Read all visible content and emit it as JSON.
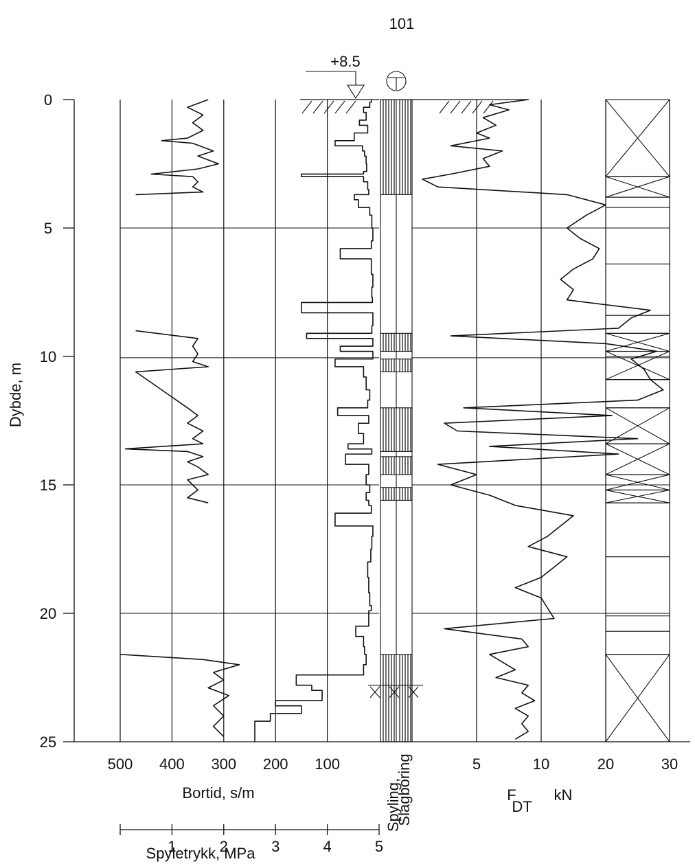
{
  "chart_data": {
    "type": "line",
    "title": "101",
    "ylabel": "Dybde, m",
    "depth_ticks": [
      "0",
      "5",
      "10",
      "15",
      "20",
      "25"
    ],
    "ylim": [
      0,
      25
    ],
    "water_level_label": "+8.5",
    "bortid": {
      "xlabel": "Bortid, s/m",
      "ticks": [
        "500",
        "400",
        "300",
        "200",
        "100"
      ],
      "xlim": [
        0,
        500
      ],
      "depth": [
        0.0,
        0.1,
        0.3,
        0.5,
        0.8,
        1.0,
        1.3,
        1.6,
        1.8,
        2.0,
        2.2,
        2.5,
        2.8,
        2.9,
        3.0,
        3.2,
        3.5,
        3.7,
        3.9,
        4.2,
        4.5,
        5.0,
        5.5,
        5.8,
        6.2,
        6.8,
        7.3,
        7.7,
        7.9,
        8.3,
        8.8,
        9.1,
        9.3,
        9.6,
        9.8,
        10.1,
        10.4,
        10.8,
        11.3,
        11.7,
        12.0,
        12.3,
        12.6,
        13.0,
        13.4,
        13.6,
        13.8,
        14.2,
        14.6,
        15.0,
        15.3,
        15.6,
        15.8,
        16.1,
        16.6,
        17.0,
        17.5,
        18.0,
        18.6,
        19.2,
        19.7,
        19.9,
        20.5,
        20.9,
        21.3,
        21.6,
        22.0,
        22.4,
        22.8,
        23.0,
        23.4,
        23.6,
        23.9,
        24.2,
        24.6,
        24.9
      ],
      "values": [
        15,
        18,
        30,
        25,
        38,
        22,
        48,
        85,
        32,
        28,
        25,
        24,
        30,
        150,
        30,
        22,
        20,
        48,
        40,
        18,
        14,
        12,
        15,
        75,
        15,
        12,
        14,
        13,
        150,
        12,
        14,
        140,
        12,
        75,
        12,
        85,
        30,
        25,
        18,
        22,
        80,
        20,
        40,
        30,
        60,
        14,
        65,
        20,
        25,
        18,
        25,
        20,
        15,
        85,
        12,
        14,
        16,
        22,
        20,
        18,
        15,
        20,
        45,
        30,
        28,
        25,
        30,
        160,
        130,
        110,
        200,
        150,
        210,
        240,
        240,
        240
      ],
      "color": "#111111"
    },
    "spyletrykk": {
      "xlabel": "Spyletrykk, MPa",
      "ticks": [
        "1",
        "2",
        "3",
        "4",
        "5"
      ],
      "xlim": [
        0,
        5
      ],
      "depth": [
        0.0,
        0.3,
        0.6,
        0.9,
        1.2,
        1.5,
        1.6,
        1.7,
        2.0,
        2.2,
        2.5,
        2.7,
        2.9,
        3.0,
        3.2,
        3.4,
        3.6,
        3.7,
        9.0,
        9.3,
        9.6,
        9.9,
        10.2,
        10.4,
        10.6,
        12.0,
        12.3,
        12.6,
        12.9,
        13.2,
        13.4,
        13.6,
        13.7,
        13.9,
        14.1,
        14.3,
        14.6,
        14.8,
        15.0,
        15.2,
        15.5,
        15.7,
        21.6,
        21.8,
        22.0,
        22.3,
        22.6,
        22.9,
        23.2,
        23.6,
        24.0,
        24.4,
        24.8
      ],
      "values": [
        1.7,
        1.3,
        1.6,
        1.4,
        1.6,
        1.3,
        0.8,
        1.4,
        1.8,
        1.5,
        1.9,
        1.5,
        0.6,
        1.4,
        1.5,
        1.4,
        1.6,
        0.3,
        0.3,
        1.5,
        1.4,
        1.5,
        1.4,
        1.7,
        0.3,
        1.3,
        1.5,
        1.3,
        1.6,
        1.4,
        1.6,
        0.1,
        1.3,
        1.6,
        1.3,
        1.5,
        1.7,
        1.3,
        1.4,
        1.5,
        1.3,
        1.7,
        0.0,
        1.6,
        2.3,
        1.8,
        2.0,
        1.7,
        2.1,
        1.8,
        2.0,
        1.8,
        2.0
      ],
      "color": "#111111"
    },
    "method_column": {
      "label_top": "Spyling,",
      "label_bottom": "Slagboring",
      "hatched_intervals": [
        [
          0,
          3.7
        ],
        [
          9.1,
          9.8
        ],
        [
          10.1,
          10.6
        ],
        [
          12.0,
          13.7
        ],
        [
          13.9,
          14.6
        ],
        [
          15.1,
          15.6
        ],
        [
          21.6,
          25.0
        ]
      ]
    },
    "fdt": {
      "xlabel": "F",
      "xlabel_sub": "DT",
      "unit": "kN",
      "ticks": [
        "5",
        "10",
        "20",
        "30"
      ],
      "xlim": [
        0,
        30
      ],
      "depth": [
        0.0,
        0.2,
        0.4,
        0.7,
        1.0,
        1.3,
        1.5,
        1.8,
        2.0,
        2.3,
        2.6,
        2.9,
        3.1,
        3.4,
        3.7,
        4.1,
        4.5,
        5.0,
        5.4,
        5.8,
        6.2,
        6.6,
        7.0,
        7.4,
        7.8,
        8.2,
        8.5,
        8.9,
        9.2,
        9.5,
        9.8,
        10.1,
        10.5,
        10.9,
        11.3,
        11.7,
        12.0,
        12.3,
        12.6,
        12.9,
        13.2,
        13.5,
        13.8,
        14.2,
        14.6,
        15.0,
        15.4,
        15.8,
        16.2,
        16.6,
        17.0,
        17.4,
        17.8,
        18.2,
        18.6,
        19.0,
        19.4,
        19.8,
        20.2,
        20.6,
        21.0,
        21.3,
        21.6,
        21.9,
        22.2,
        22.5,
        22.8,
        23.1,
        23.4,
        23.7,
        24.0,
        24.3,
        24.6,
        24.9
      ],
      "values": [
        9.0,
        6.0,
        7.5,
        5.5,
        6.5,
        5.0,
        6.0,
        3.0,
        7.0,
        5.5,
        6.0,
        3.0,
        0.8,
        2.0,
        14.0,
        20.0,
        17.0,
        14.0,
        16.0,
        19.0,
        18.0,
        15.0,
        13.0,
        15.0,
        14.0,
        27.0,
        24.0,
        22.0,
        3.0,
        20.0,
        28.0,
        24.0,
        26.0,
        27.0,
        29.0,
        25.0,
        4.0,
        21.0,
        2.5,
        3.5,
        25.0,
        6.0,
        22.0,
        2.0,
        5.0,
        3.0,
        6.0,
        8.0,
        15.0,
        13.0,
        11.0,
        9.0,
        14.0,
        12.0,
        10.0,
        8.0,
        10.0,
        11.0,
        12.0,
        2.5,
        8.5,
        9.0,
        6.0,
        7.0,
        8.0,
        6.5,
        9.0,
        8.5,
        9.5,
        8.0,
        9.0,
        8.5,
        9.0,
        8.0
      ],
      "color": "#111111"
    },
    "resistance_column": {
      "crossed_intervals": [
        [
          0,
          3.0
        ],
        [
          3.0,
          3.8
        ],
        [
          9.1,
          9.8
        ],
        [
          9.8,
          10.9
        ],
        [
          12.0,
          13.4
        ],
        [
          13.4,
          14.6
        ],
        [
          14.6,
          15.2
        ],
        [
          15.2,
          15.7
        ],
        [
          21.6,
          25.0
        ]
      ],
      "horizontal_lines": [
        0,
        3.0,
        3.8,
        4.2,
        5.0,
        6.4,
        8.4,
        9.1,
        10.0,
        10.9,
        12.0,
        13.4,
        14.6,
        15.2,
        15.7,
        17.8,
        20.1,
        20.7,
        21.6,
        25.0
      ]
    }
  }
}
